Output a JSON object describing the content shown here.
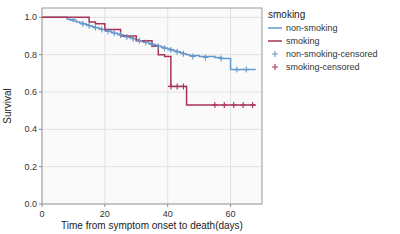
{
  "chart_data": {
    "type": "line",
    "title": "smoking",
    "xlabel": "Time from symptom onset to death(days)",
    "ylabel": "Survival",
    "xlim": [
      0,
      70
    ],
    "ylim": [
      0.0,
      1.05
    ],
    "xticks": [
      0,
      20,
      40,
      60
    ],
    "yticks": [
      {
        "value": 0.0,
        "label": "0.0"
      },
      0.2,
      0.4,
      0.6,
      0.8,
      {
        "value": 1.0,
        "label": "1.0"
      }
    ],
    "grid": true,
    "legend": "upper right",
    "series": [
      {
        "name": "non-smoking",
        "type": "step",
        "color": "#6699cc",
        "x": [
          0,
          8,
          9,
          10,
          11,
          12,
          13,
          14,
          15,
          16,
          17,
          18,
          19,
          20,
          21,
          22,
          23,
          24,
          25,
          26,
          27,
          28,
          29,
          30,
          31,
          32,
          33,
          34,
          35,
          36,
          37,
          38,
          39,
          40,
          41,
          42,
          43,
          44,
          45,
          46,
          47,
          50,
          55,
          57,
          60,
          65,
          68
        ],
        "values": [
          1.0,
          0.99,
          0.985,
          0.98,
          0.975,
          0.97,
          0.965,
          0.96,
          0.955,
          0.95,
          0.945,
          0.94,
          0.935,
          0.93,
          0.925,
          0.92,
          0.915,
          0.91,
          0.905,
          0.9,
          0.895,
          0.89,
          0.885,
          0.88,
          0.875,
          0.87,
          0.865,
          0.86,
          0.855,
          0.85,
          0.845,
          0.84,
          0.835,
          0.83,
          0.825,
          0.82,
          0.815,
          0.81,
          0.805,
          0.8,
          0.795,
          0.79,
          0.785,
          0.78,
          0.72,
          0.72,
          0.72
        ]
      },
      {
        "name": "smoking",
        "type": "step",
        "color": "#aa3355",
        "x": [
          0,
          10,
          15,
          17,
          20,
          25,
          30,
          35,
          37,
          39,
          41,
          46,
          50,
          55,
          65,
          68
        ],
        "values": [
          1.0,
          1.0,
          0.975,
          0.965,
          0.935,
          0.9,
          0.875,
          0.845,
          0.8,
          0.79,
          0.63,
          0.53,
          0.53,
          0.53,
          0.53,
          0.53
        ]
      },
      {
        "name": "non-smoking-censored",
        "type": "scatter",
        "marker": "+",
        "color": "#6699cc",
        "x": [
          10,
          13,
          15,
          17,
          19,
          21,
          23,
          25,
          27,
          29,
          31,
          33,
          35,
          37,
          39,
          41,
          43,
          45,
          48,
          52,
          57,
          62,
          65
        ],
        "values": [
          0.99,
          0.965,
          0.955,
          0.945,
          0.935,
          0.925,
          0.915,
          0.905,
          0.895,
          0.885,
          0.875,
          0.865,
          0.855,
          0.845,
          0.835,
          0.825,
          0.815,
          0.805,
          0.79,
          0.785,
          0.78,
          0.72,
          0.72
        ]
      },
      {
        "name": "smoking-censored",
        "type": "scatter",
        "marker": "+",
        "color": "#aa3355",
        "x": [
          41,
          43,
          45,
          55,
          58,
          61,
          64,
          67
        ],
        "values": [
          0.63,
          0.63,
          0.63,
          0.53,
          0.53,
          0.53,
          0.53,
          0.53
        ]
      }
    ]
  }
}
